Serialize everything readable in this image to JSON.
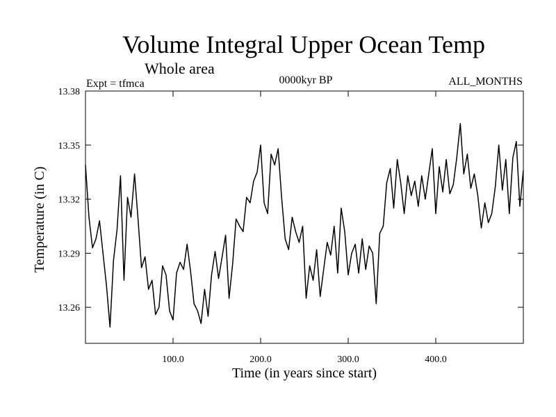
{
  "header": {
    "title": "Volume Integral Upper Ocean Temp",
    "subtitle": "Whole area",
    "experiment": "Expt = tfmca",
    "period": "0000kyr BP",
    "months": "ALL_MONTHS"
  },
  "chart_data": {
    "type": "line",
    "xlabel": "Time (in years since start)",
    "ylabel": "Temperature (in C)",
    "xlim": [
      0,
      500
    ],
    "ylim": [
      13.24,
      13.38
    ],
    "xticks": [
      100,
      200,
      300,
      400
    ],
    "xtick_labels": [
      "100.0",
      "200.0",
      "300.0",
      "400.0"
    ],
    "yticks": [
      13.26,
      13.29,
      13.32,
      13.35,
      13.38
    ],
    "ytick_labels": [
      "13.26",
      "13.29",
      "13.32",
      "13.35",
      "13.38"
    ],
    "grid": false,
    "series": [
      {
        "color": "#000000",
        "x": [
          0,
          4,
          8,
          12,
          16,
          20,
          24,
          28,
          32,
          36,
          40,
          44,
          48,
          52,
          56,
          60,
          64,
          68,
          72,
          76,
          80,
          84,
          88,
          92,
          96,
          100,
          104,
          108,
          112,
          116,
          120,
          124,
          128,
          132,
          136,
          140,
          144,
          148,
          152,
          156,
          160,
          164,
          168,
          172,
          176,
          180,
          184,
          188,
          192,
          196,
          200,
          204,
          208,
          212,
          216,
          220,
          224,
          228,
          232,
          236,
          240,
          244,
          248,
          252,
          256,
          260,
          264,
          268,
          272,
          276,
          280,
          284,
          288,
          292,
          296,
          300,
          304,
          308,
          312,
          316,
          320,
          324,
          328,
          332,
          336,
          340,
          344,
          348,
          352,
          356,
          360,
          364,
          368,
          372,
          376,
          380,
          384,
          388,
          392,
          396,
          400,
          404,
          408,
          412,
          416,
          420,
          424,
          428,
          432,
          436,
          440,
          444,
          448,
          452,
          456,
          460,
          464,
          468,
          472,
          476,
          480,
          484,
          488,
          492,
          496,
          500
        ],
        "y": [
          13.339,
          13.31,
          13.293,
          13.298,
          13.308,
          13.29,
          13.272,
          13.249,
          13.286,
          13.303,
          13.333,
          13.275,
          13.321,
          13.31,
          13.334,
          13.309,
          13.282,
          13.288,
          13.27,
          13.275,
          13.256,
          13.26,
          13.283,
          13.278,
          13.258,
          13.253,
          13.279,
          13.285,
          13.281,
          13.295,
          13.28,
          13.262,
          13.258,
          13.251,
          13.27,
          13.255,
          13.278,
          13.291,
          13.276,
          13.288,
          13.3,
          13.265,
          13.284,
          13.309,
          13.305,
          13.302,
          13.321,
          13.318,
          13.33,
          13.335,
          13.35,
          13.318,
          13.312,
          13.345,
          13.339,
          13.348,
          13.321,
          13.298,
          13.292,
          13.31,
          13.302,
          13.296,
          13.305,
          13.265,
          13.283,
          13.275,
          13.292,
          13.266,
          13.281,
          13.296,
          13.289,
          13.305,
          13.279,
          13.315,
          13.302,
          13.278,
          13.29,
          13.295,
          13.279,
          13.298,
          13.281,
          13.294,
          13.29,
          13.262,
          13.301,
          13.305,
          13.329,
          13.337,
          13.315,
          13.342,
          13.329,
          13.312,
          13.333,
          13.322,
          13.33,
          13.316,
          13.333,
          13.32,
          13.334,
          13.348,
          13.312,
          13.338,
          13.324,
          13.342,
          13.323,
          13.328,
          13.343,
          13.362,
          13.334,
          13.345,
          13.326,
          13.334,
          13.322,
          13.304,
          13.318,
          13.307,
          13.312,
          13.327,
          13.35,
          13.325,
          13.342,
          13.312,
          13.343,
          13.352,
          13.316,
          13.336
        ]
      }
    ]
  }
}
